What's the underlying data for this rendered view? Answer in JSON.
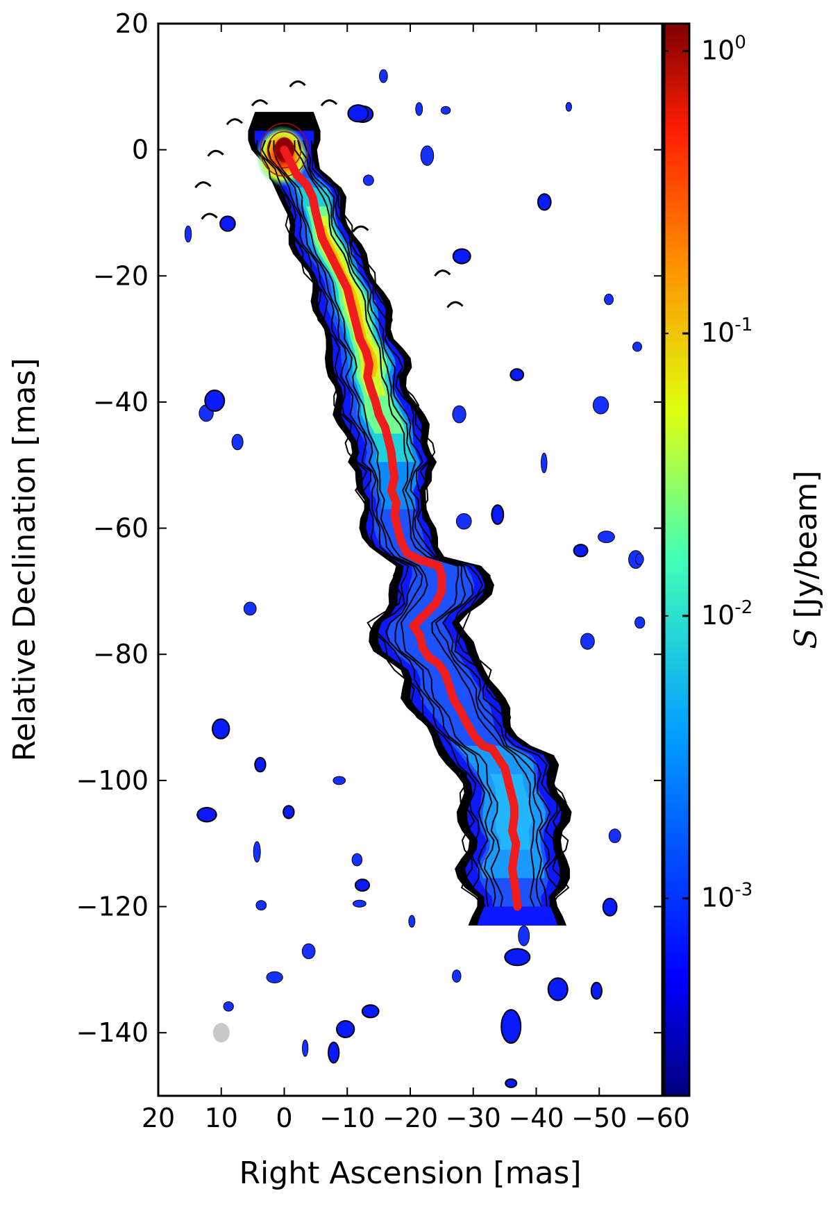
{
  "chart_data": {
    "type": "heatmap",
    "title": "",
    "xlabel": "Right Ascension [mas]",
    "ylabel": "Relative Declination [mas]",
    "colorbar_label": "S [Jy/beam]",
    "colorbar_label_symbol": "S",
    "colorbar_label_unit": "[Jy/beam]",
    "colorbar_scale": "log",
    "colormap": "jet",
    "colorbar_range": [
      0.0002,
      1.25
    ],
    "xlim": [
      20,
      -60
    ],
    "ylim": [
      -150,
      20
    ],
    "x_ticks": [
      20,
      10,
      0,
      -10,
      -20,
      -30,
      -40,
      -50,
      -60
    ],
    "x_tick_labels": [
      "20",
      "10",
      "0",
      "−10",
      "−20",
      "−30",
      "−40",
      "−50",
      "−60"
    ],
    "y_ticks": [
      20,
      0,
      -20,
      -40,
      -60,
      -80,
      -100,
      -120,
      -140
    ],
    "y_tick_labels": [
      "20",
      "0",
      "−20",
      "−40",
      "−60",
      "−80",
      "−100",
      "−120",
      "−140"
    ],
    "colorbar_ticks": [
      1,
      0.1,
      0.01,
      0.001
    ],
    "colorbar_tick_labels": [
      {
        "base": "10",
        "exp": "0"
      },
      {
        "base": "10",
        "exp": "-1"
      },
      {
        "base": "10",
        "exp": "-2"
      },
      {
        "base": "10",
        "exp": "-3"
      }
    ],
    "ridge_line": {
      "color": "#ee1c1c",
      "points": [
        [
          0,
          0
        ],
        [
          -1,
          -2
        ],
        [
          -2,
          -4
        ],
        [
          -3.5,
          -5.5
        ],
        [
          -4.5,
          -7.5
        ],
        [
          -5,
          -10
        ],
        [
          -5.5,
          -12
        ],
        [
          -6,
          -14
        ],
        [
          -7,
          -16
        ],
        [
          -8,
          -18
        ],
        [
          -9,
          -20
        ],
        [
          -10,
          -22
        ],
        [
          -10.5,
          -24
        ],
        [
          -11,
          -26
        ],
        [
          -11.5,
          -28
        ],
        [
          -12,
          -30
        ],
        [
          -13,
          -32
        ],
        [
          -13.5,
          -34
        ],
        [
          -13.2,
          -36
        ],
        [
          -13.8,
          -38
        ],
        [
          -14.5,
          -40
        ],
        [
          -15,
          -42
        ],
        [
          -16,
          -44
        ],
        [
          -16.5,
          -46
        ],
        [
          -17,
          -48
        ],
        [
          -17.2,
          -50
        ],
        [
          -17.5,
          -52
        ],
        [
          -17,
          -54
        ],
        [
          -17.8,
          -56
        ],
        [
          -17.5,
          -58
        ],
        [
          -18,
          -60
        ],
        [
          -18.5,
          -62
        ],
        [
          -19.5,
          -64
        ],
        [
          -21.5,
          -65
        ],
        [
          -23,
          -65.5
        ],
        [
          -24.5,
          -66
        ],
        [
          -25,
          -67.5
        ],
        [
          -25,
          -70
        ],
        [
          -24,
          -72
        ],
        [
          -22,
          -74
        ],
        [
          -20.5,
          -75.5
        ],
        [
          -21.5,
          -77
        ],
        [
          -22,
          -79
        ],
        [
          -23,
          -80.5
        ],
        [
          -24.5,
          -81.5
        ],
        [
          -25.5,
          -83
        ],
        [
          -26.2,
          -85
        ],
        [
          -26.8,
          -87
        ],
        [
          -28,
          -89
        ],
        [
          -29,
          -91
        ],
        [
          -30.2,
          -93
        ],
        [
          -31.5,
          -94.5
        ],
        [
          -33,
          -95
        ],
        [
          -34,
          -96.5
        ],
        [
          -35,
          -98
        ],
        [
          -35.5,
          -100
        ],
        [
          -36,
          -102
        ],
        [
          -36.5,
          -104
        ],
        [
          -36.5,
          -106
        ],
        [
          -36.2,
          -108
        ],
        [
          -36.8,
          -110
        ],
        [
          -36.5,
          -112
        ],
        [
          -36.2,
          -114
        ],
        [
          -36.5,
          -116
        ],
        [
          -36.8,
          -118
        ],
        [
          -37,
          -120
        ]
      ]
    },
    "beam": {
      "x": 10,
      "y": -140,
      "color": "#c8c8c8"
    }
  }
}
